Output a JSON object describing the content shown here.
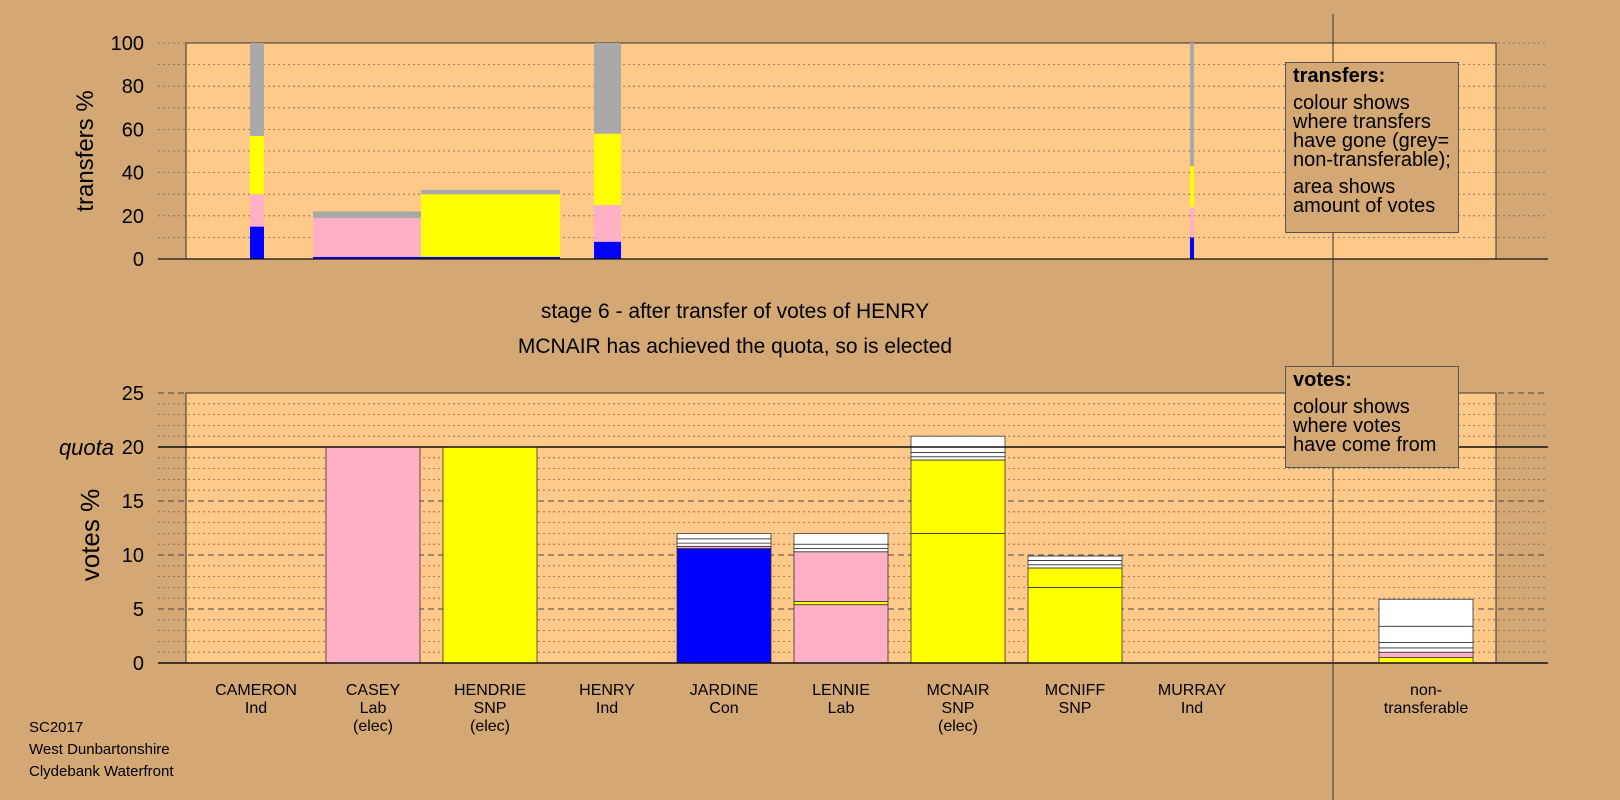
{
  "stage": {
    "line1": "stage 6 - after transfer of votes of HENRY",
    "line2": "MCNAIR has achieved the quota, so is elected"
  },
  "transfers_legend": {
    "title": "transfers:",
    "lines1": [
      "colour shows",
      "where transfers",
      "have gone (grey=",
      "non-transferable);"
    ],
    "lines2": [
      "area shows",
      "amount of votes"
    ]
  },
  "votes_legend": {
    "title": "votes:",
    "lines": [
      "colour shows",
      "where votes",
      "have come from"
    ]
  },
  "footer": [
    "SC2017",
    "West Dunbartonshire",
    "Clydebank Waterfront"
  ],
  "colors": {
    "background": "#d4a874",
    "plot_area": "#ffc98a",
    "Lab": "#ffb0c4",
    "SNP": "#ffff00",
    "Con": "#0000ff",
    "non_transferable": "#a9a9a9",
    "other": "#ffffff"
  },
  "chart_data": [
    {
      "type": "bar",
      "name": "transfers",
      "ylabel": "transfers %",
      "ylim": [
        0,
        100
      ],
      "yticks": [
        0,
        20,
        40,
        60,
        80,
        100
      ],
      "grid": true,
      "bars": [
        {
          "candidate": "CAMERON",
          "segments": [
            {
              "party": "Con",
              "value": 15
            },
            {
              "party": "Lab",
              "value": 15
            },
            {
              "party": "SNP",
              "value": 27
            },
            {
              "party": "non_transferable",
              "value": 43
            }
          ]
        },
        {
          "candidate": "CASEY",
          "segments": [
            {
              "party": "Con",
              "value": 1
            },
            {
              "party": "Lab",
              "value": 18
            },
            {
              "party": "non_transferable",
              "value": 3
            }
          ]
        },
        {
          "candidate": "HENDRIE",
          "segments": [
            {
              "party": "Con",
              "value": 1
            },
            {
              "party": "SNP",
              "value": 29
            },
            {
              "party": "non_transferable",
              "value": 2
            }
          ]
        },
        {
          "candidate": "HENRY",
          "segments": [
            {
              "party": "Con",
              "value": 8
            },
            {
              "party": "Lab",
              "value": 17
            },
            {
              "party": "SNP",
              "value": 33
            },
            {
              "party": "non_transferable",
              "value": 42
            }
          ]
        },
        {
          "candidate": "MURRAY",
          "segments": [
            {
              "party": "Con",
              "value": 10
            },
            {
              "party": "Lab",
              "value": 14
            },
            {
              "party": "SNP",
              "value": 19
            },
            {
              "party": "non_transferable",
              "value": 57
            }
          ]
        }
      ]
    },
    {
      "type": "bar",
      "name": "votes",
      "ylabel": "votes %",
      "ylim": [
        0,
        25
      ],
      "yticks": [
        0,
        5,
        10,
        15,
        20,
        25
      ],
      "quota": 20,
      "quota_label": "quota",
      "grid": true,
      "candidates": [
        {
          "name": "CAMERON",
          "party": "Ind",
          "status": "",
          "segments": []
        },
        {
          "name": "CASEY",
          "party": "Lab",
          "status": "(elec)",
          "segments": [
            {
              "party": "Lab",
              "value": 20
            }
          ]
        },
        {
          "name": "HENDRIE",
          "party": "SNP",
          "status": "(elec)",
          "segments": [
            {
              "party": "SNP",
              "value": 20
            }
          ]
        },
        {
          "name": "HENRY",
          "party": "Ind",
          "status": "",
          "segments": []
        },
        {
          "name": "JARDINE",
          "party": "Con",
          "status": "",
          "segments": [
            {
              "party": "Con",
              "value": 10.6
            },
            {
              "party": "Lab",
              "value": 0.2
            },
            {
              "party": "other",
              "value": 0.3
            },
            {
              "party": "other",
              "value": 0.4
            },
            {
              "party": "other",
              "value": 0.5
            }
          ]
        },
        {
          "name": "LENNIE",
          "party": "Lab",
          "status": "",
          "segments": [
            {
              "party": "Lab",
              "value": 5.4
            },
            {
              "party": "SNP",
              "value": 0.3
            },
            {
              "party": "Lab",
              "value": 4.6
            },
            {
              "party": "other",
              "value": 0.3
            },
            {
              "party": "other",
              "value": 0.4
            },
            {
              "party": "other",
              "value": 1.0
            }
          ]
        },
        {
          "name": "MCNAIR",
          "party": "SNP",
          "status": "(elec)",
          "segments": [
            {
              "party": "SNP",
              "value": 12
            },
            {
              "party": "SNP",
              "value": 6.8
            },
            {
              "party": "other",
              "value": 0.3
            },
            {
              "party": "other",
              "value": 0.4
            },
            {
              "party": "other",
              "value": 1.5
            }
          ]
        },
        {
          "name": "MCNIFF",
          "party": "SNP",
          "status": "",
          "segments": [
            {
              "party": "SNP",
              "value": 7
            },
            {
              "party": "SNP",
              "value": 1.8
            },
            {
              "party": "other",
              "value": 0.3
            },
            {
              "party": "other",
              "value": 0.4
            },
            {
              "party": "other",
              "value": 0.4
            }
          ]
        },
        {
          "name": "MURRAY",
          "party": "Ind",
          "status": "",
          "segments": []
        },
        {
          "name": "non-",
          "party": "transferable",
          "status": "",
          "segments": [
            {
              "party": "SNP",
              "value": 0.5
            },
            {
              "party": "Lab",
              "value": 0.5
            },
            {
              "party": "other",
              "value": 0.4
            },
            {
              "party": "other",
              "value": 0.5
            },
            {
              "party": "other",
              "value": 1.5
            },
            {
              "party": "other",
              "value": 2.5
            }
          ]
        }
      ]
    }
  ]
}
